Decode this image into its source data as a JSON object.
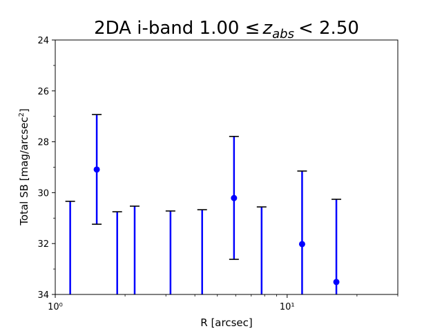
{
  "chart_data": {
    "type": "errorbar",
    "title": {
      "text": "2DA i-band 1.00 ≤",
      "var": "z",
      "sub": "abs",
      "tail": "< 2.50"
    },
    "x_label": "R [arcsec]",
    "y_label": {
      "text": "Total SB [mag/arcsec",
      "sup": "2",
      "tail": "]"
    },
    "x_scale": "log",
    "y_inverted": true,
    "xlim": [
      1,
      30
    ],
    "ylim": [
      24,
      34
    ],
    "xticks": [
      {
        "value": 1,
        "label": "10⁰"
      },
      {
        "value": 10,
        "label": "10¹"
      }
    ],
    "xminorticks": [
      2,
      3,
      4,
      5,
      6,
      7,
      8,
      9,
      20,
      30
    ],
    "yticks": [
      24,
      26,
      28,
      30,
      32,
      34
    ],
    "yminorticks": [
      25,
      27,
      29,
      31,
      33
    ],
    "color": "#0000ff",
    "cap_color": "#000000",
    "x": [
      1.16,
      1.51,
      1.85,
      2.2,
      3.14,
      4.3,
      5.9,
      7.76,
      11.6,
      16.3
    ],
    "values": [
      null,
      29.09,
      null,
      null,
      null,
      null,
      30.21,
      null,
      32.02,
      33.51
    ],
    "upper_end": [
      30.34,
      26.93,
      30.75,
      30.53,
      30.72,
      30.67,
      27.79,
      30.56,
      29.15,
      30.26
    ],
    "lower_end": [
      null,
      31.24,
      null,
      null,
      null,
      null,
      32.62,
      null,
      null,
      null
    ]
  }
}
